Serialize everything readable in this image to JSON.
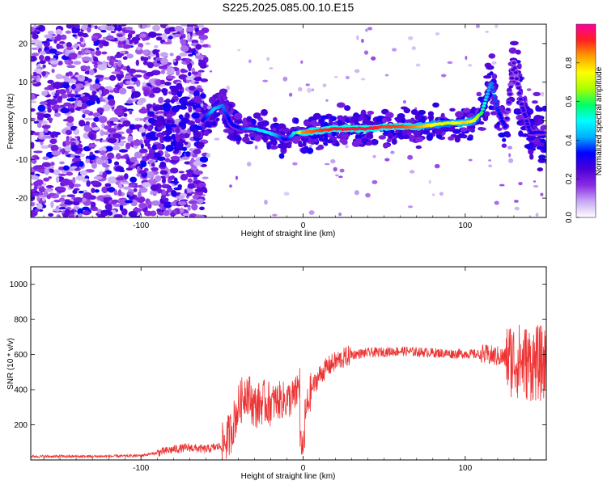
{
  "chart_data": [
    {
      "type": "heatmap",
      "title": "S225.2025.085.00.10.E15",
      "xlabel": "Height of straight line (km)",
      "ylabel": "Frequency (Hz)",
      "xlim": [
        -168,
        150
      ],
      "ylim": [
        -25,
        25
      ],
      "x_ticks": [
        -100,
        0,
        100
      ],
      "y_ticks": [
        -20,
        -10,
        0,
        10,
        20
      ],
      "colorbar": {
        "label": "Normalized spectral amplitude",
        "range": [
          0,
          1
        ],
        "ticks": [
          "0.0",
          "0.2",
          "0.4",
          "0.6",
          "0.8"
        ],
        "colors": [
          "#ffffff",
          "#c7a8f5",
          "#8a2be2",
          "#4b00d9",
          "#0000ff",
          "#00b0ff",
          "#00ffff",
          "#00ff66",
          "#aaff00",
          "#ffff00",
          "#ffa000",
          "#ff2020",
          "#ff00a0"
        ]
      },
      "ridge": {
        "x": [
          -62,
          -55,
          -50,
          -44,
          -38,
          -30,
          -22,
          -15,
          -10,
          -5,
          0,
          10,
          20,
          30,
          40,
          50,
          60,
          70,
          80,
          90,
          100,
          105,
          110,
          113,
          116,
          120,
          125,
          130,
          135,
          140
        ],
        "frequency": [
          0,
          3,
          4,
          -1,
          -2,
          -2,
          -3,
          -4,
          -5,
          -3,
          -3,
          -2.5,
          -2,
          -2,
          -2,
          -1.5,
          -1.5,
          -1.5,
          -1,
          -0.5,
          -0.5,
          0,
          2,
          6,
          10,
          3,
          -2,
          15,
          4,
          -3
        ],
        "amplitude": [
          0.3,
          0.45,
          0.4,
          0.3,
          0.35,
          0.45,
          0.5,
          0.4,
          0.3,
          0.5,
          0.85,
          0.9,
          0.92,
          0.95,
          0.95,
          0.9,
          0.9,
          0.85,
          0.75,
          0.7,
          0.8,
          0.75,
          0.6,
          0.45,
          0.4,
          0.35,
          0.3,
          0.25,
          0.3,
          0.3
        ]
      }
    },
    {
      "type": "line",
      "xlabel": "Height of straight line (km)",
      "ylabel": "SNR (10 * v/v)",
      "xlim": [
        -168,
        150
      ],
      "ylim": [
        0,
        1100
      ],
      "x_ticks": [
        -100,
        0,
        100
      ],
      "y_ticks": [
        200,
        400,
        600,
        800,
        1000
      ],
      "color": "#ee3333",
      "series": [
        {
          "x": [
            -168,
            -150,
            -130,
            -110,
            -100,
            -90,
            -80,
            -70,
            -60,
            -50,
            -45,
            -40,
            -35,
            -30,
            -25,
            -20,
            -15,
            -10,
            -5,
            -2,
            0,
            5,
            10,
            15,
            20,
            25,
            30,
            40,
            50,
            60,
            70,
            80,
            90,
            100,
            110,
            120,
            125,
            130,
            135,
            140,
            145,
            150
          ],
          "y": [
            20,
            20,
            20,
            22,
            25,
            40,
            60,
            70,
            60,
            80,
            150,
            300,
            400,
            300,
            330,
            320,
            340,
            340,
            360,
            450,
            200,
            400,
            480,
            530,
            560,
            580,
            600,
            610,
            615,
            620,
            615,
            610,
            605,
            605,
            600,
            590,
            580,
            570,
            560,
            550,
            550,
            550
          ]
        }
      ]
    }
  ]
}
